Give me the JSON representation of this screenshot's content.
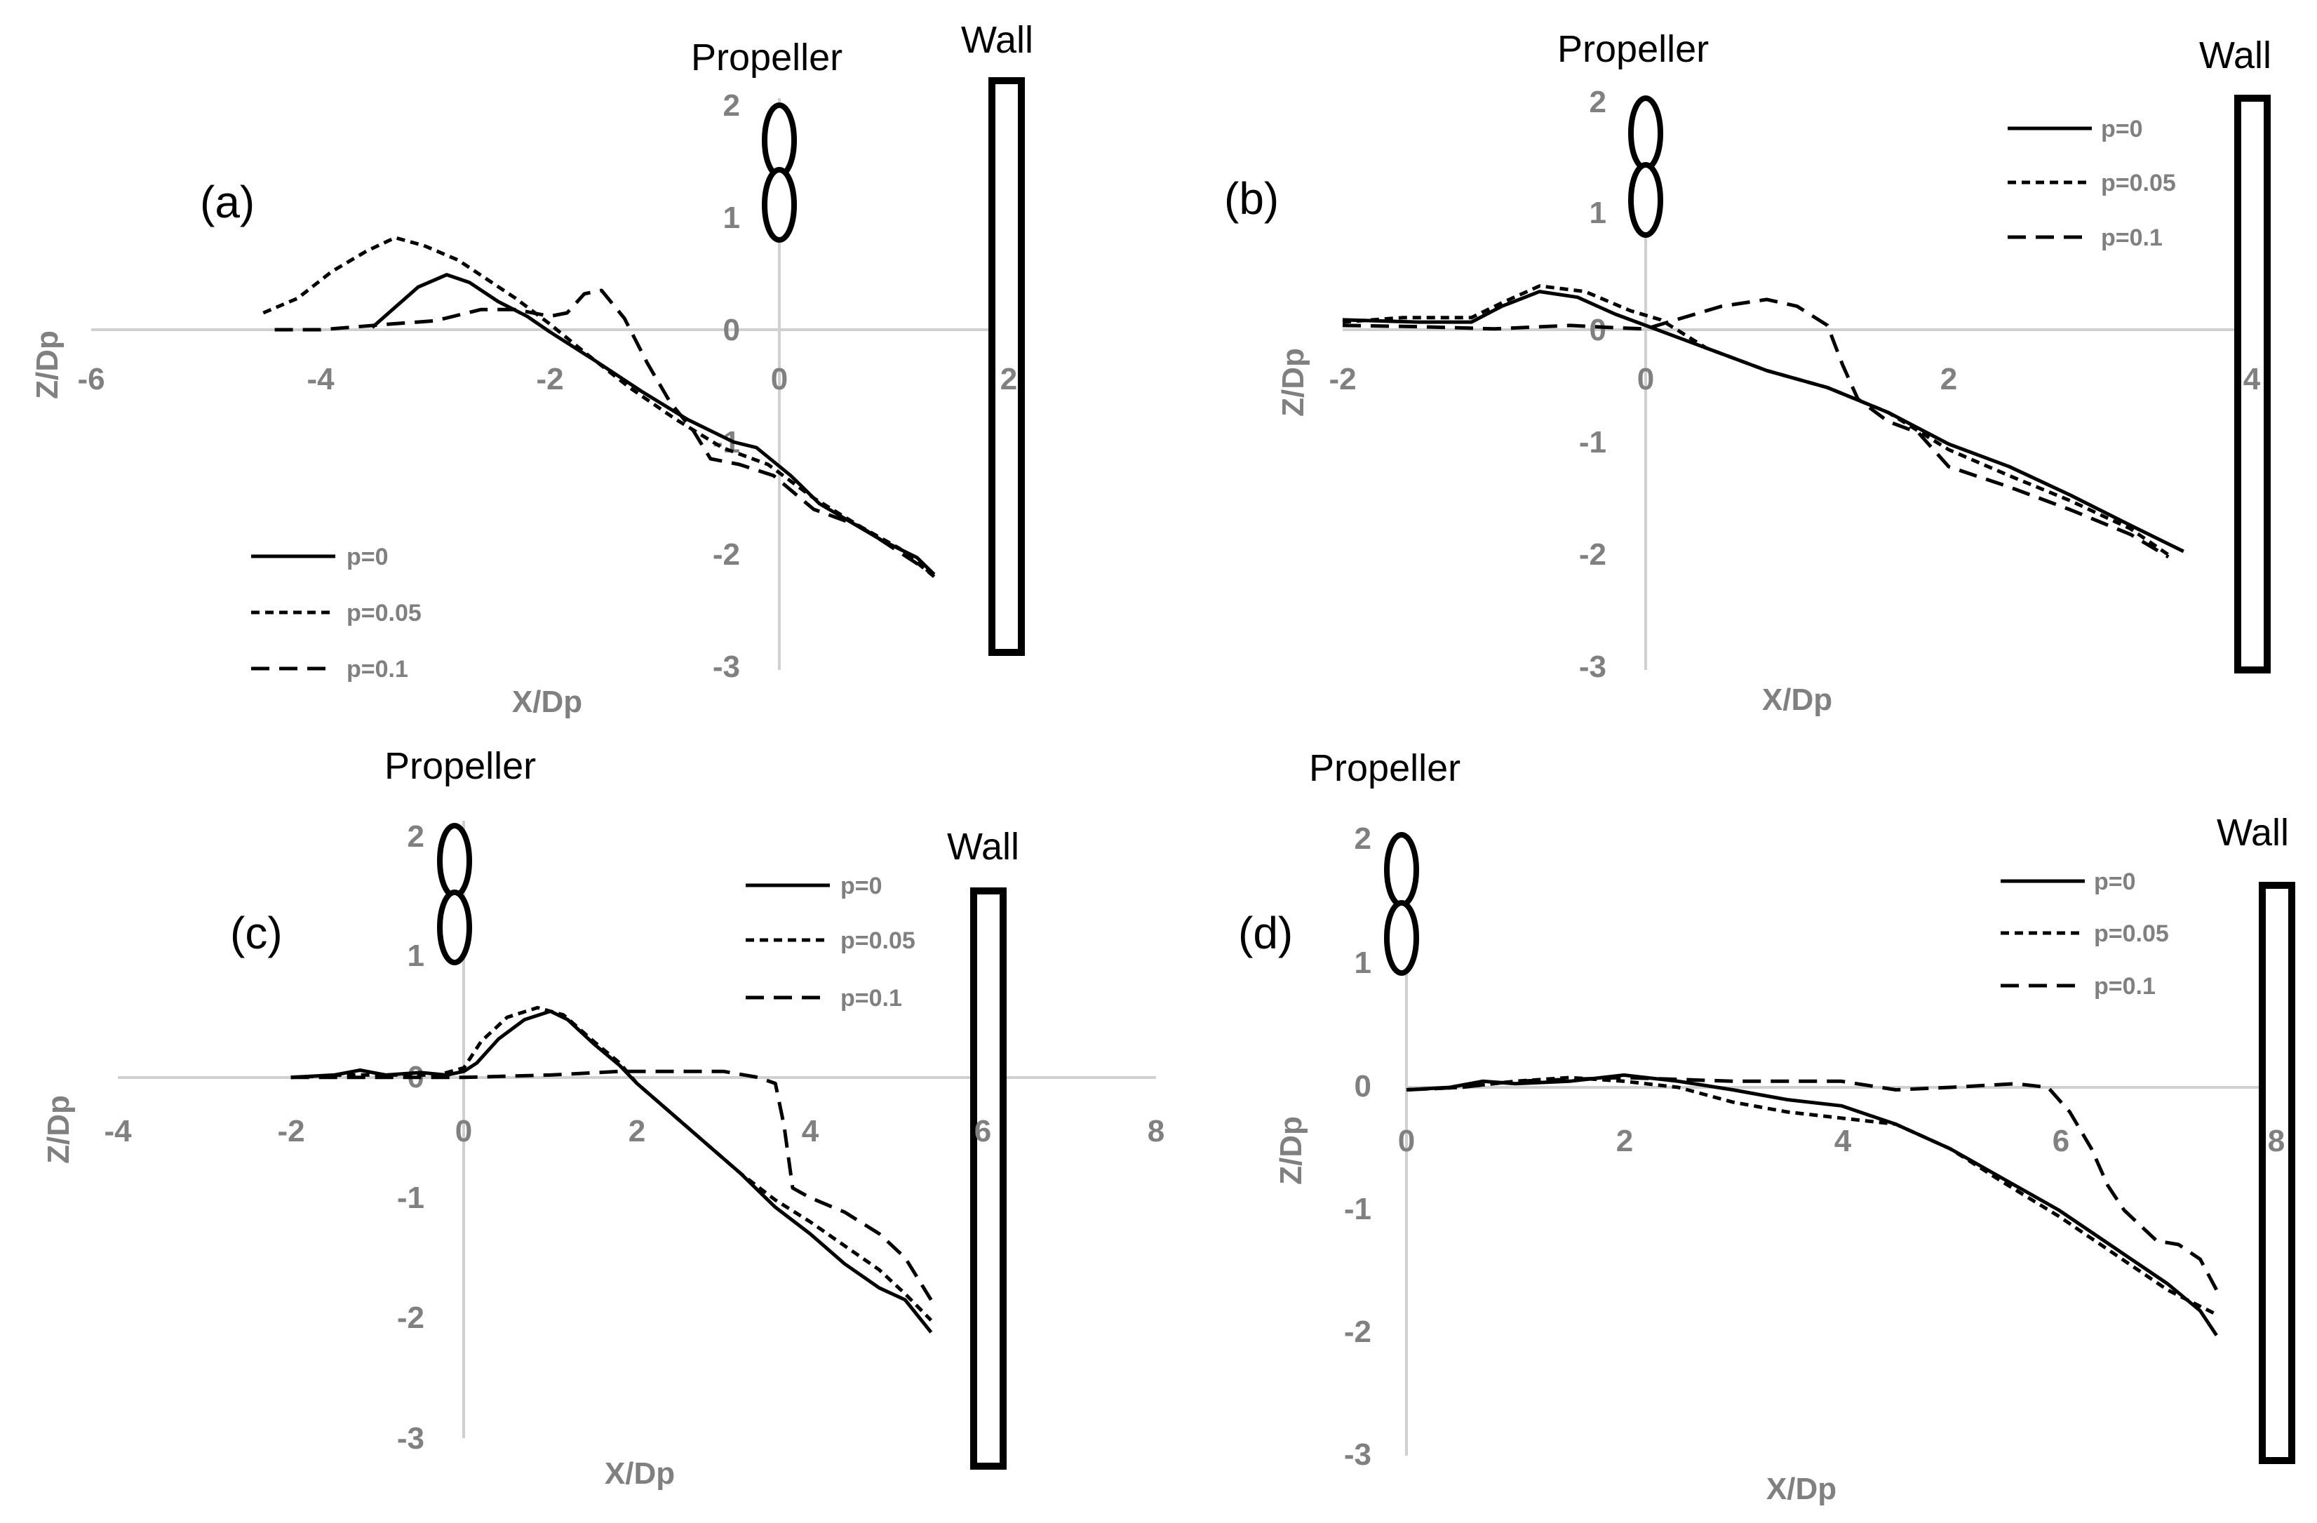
{
  "chart_data": [
    {
      "id": "a",
      "type": "line",
      "panel_label": "(a)",
      "xlabel": "X/Dp",
      "ylabel": "Z/Dp",
      "xlim": [
        -6,
        2
      ],
      "ylim": [
        -3,
        2
      ],
      "x_ticks": [
        -6,
        -4,
        -2,
        0,
        2
      ],
      "y_ticks": [
        2,
        1,
        0,
        -1,
        -2,
        -3
      ],
      "propeller_label": "Propeller",
      "wall_label": "Wall",
      "legend_position": "bottom-left",
      "series": [
        {
          "name": "p=0",
          "style": "solid",
          "points": [
            [
              -3.55,
              0.02
            ],
            [
              -3.35,
              0.2
            ],
            [
              -3.15,
              0.38
            ],
            [
              -2.9,
              0.49
            ],
            [
              -2.7,
              0.42
            ],
            [
              -2.45,
              0.25
            ],
            [
              -2.2,
              0.12
            ],
            [
              -2.0,
              -0.02
            ],
            [
              -1.6,
              -0.28
            ],
            [
              -1.2,
              -0.55
            ],
            [
              -0.8,
              -0.8
            ],
            [
              -0.4,
              -1.0
            ],
            [
              -0.2,
              -1.05
            ],
            [
              0.1,
              -1.3
            ],
            [
              0.35,
              -1.55
            ],
            [
              0.6,
              -1.7
            ],
            [
              0.9,
              -1.88
            ],
            [
              1.2,
              -2.03
            ],
            [
              1.35,
              -2.18
            ]
          ]
        },
        {
          "name": "p=0.05",
          "style": "dashed",
          "points": [
            [
              -4.5,
              0.15
            ],
            [
              -4.2,
              0.28
            ],
            [
              -3.9,
              0.52
            ],
            [
              -3.6,
              0.7
            ],
            [
              -3.35,
              0.82
            ],
            [
              -3.1,
              0.75
            ],
            [
              -2.8,
              0.62
            ],
            [
              -2.55,
              0.45
            ],
            [
              -2.3,
              0.28
            ],
            [
              -2.0,
              0.05
            ],
            [
              -1.7,
              -0.2
            ],
            [
              -1.3,
              -0.52
            ],
            [
              -0.9,
              -0.8
            ],
            [
              -0.5,
              -1.05
            ],
            [
              -0.1,
              -1.2
            ],
            [
              0.3,
              -1.5
            ],
            [
              0.7,
              -1.75
            ],
            [
              1.05,
              -1.95
            ],
            [
              1.35,
              -2.2
            ]
          ]
        },
        {
          "name": "p=0.1",
          "style": "dashed-long",
          "points": [
            [
              -4.4,
              0.0
            ],
            [
              -4.0,
              0.0
            ],
            [
              -3.4,
              0.05
            ],
            [
              -3.0,
              0.08
            ],
            [
              -2.6,
              0.18
            ],
            [
              -2.3,
              0.18
            ],
            [
              -2.0,
              0.12
            ],
            [
              -1.85,
              0.15
            ],
            [
              -1.7,
              0.32
            ],
            [
              -1.55,
              0.35
            ],
            [
              -1.35,
              0.1
            ],
            [
              -1.15,
              -0.3
            ],
            [
              -0.95,
              -0.65
            ],
            [
              -0.75,
              -0.9
            ],
            [
              -0.6,
              -1.15
            ],
            [
              -0.35,
              -1.2
            ],
            [
              -0.05,
              -1.3
            ],
            [
              0.3,
              -1.6
            ],
            [
              0.7,
              -1.75
            ],
            [
              1.0,
              -1.95
            ],
            [
              1.3,
              -2.15
            ]
          ]
        }
      ]
    },
    {
      "id": "b",
      "type": "line",
      "panel_label": "(b)",
      "xlabel": "X/Dp",
      "ylabel": "Z/Dp",
      "xlim": [
        -2,
        4
      ],
      "ylim": [
        -3,
        2
      ],
      "x_ticks": [
        -2,
        0,
        2,
        4
      ],
      "y_ticks": [
        2,
        1,
        0,
        -1,
        -2,
        -3
      ],
      "propeller_label": "Propeller",
      "wall_label": "Wall",
      "legend_position": "top-right",
      "series": [
        {
          "name": "p=0",
          "style": "solid",
          "points": [
            [
              -2.0,
              0.1
            ],
            [
              -1.5,
              0.08
            ],
            [
              -1.15,
              0.08
            ],
            [
              -0.95,
              0.22
            ],
            [
              -0.7,
              0.35
            ],
            [
              -0.45,
              0.3
            ],
            [
              -0.2,
              0.15
            ],
            [
              0.0,
              0.05
            ],
            [
              0.4,
              -0.15
            ],
            [
              0.8,
              -0.35
            ],
            [
              1.2,
              -0.5
            ],
            [
              1.6,
              -0.72
            ],
            [
              2.0,
              -1.0
            ],
            [
              2.4,
              -1.2
            ],
            [
              2.8,
              -1.45
            ],
            [
              3.2,
              -1.72
            ],
            [
              3.55,
              -1.95
            ]
          ]
        },
        {
          "name": "p=0.05",
          "style": "dashed",
          "points": [
            [
              -2.0,
              0.08
            ],
            [
              -1.6,
              0.12
            ],
            [
              -1.15,
              0.12
            ],
            [
              -0.95,
              0.25
            ],
            [
              -0.7,
              0.4
            ],
            [
              -0.4,
              0.35
            ],
            [
              -0.1,
              0.18
            ],
            [
              0.1,
              0.1
            ],
            [
              0.4,
              -0.15
            ],
            [
              0.8,
              -0.35
            ],
            [
              1.2,
              -0.5
            ],
            [
              1.6,
              -0.72
            ],
            [
              2.0,
              -1.05
            ],
            [
              2.4,
              -1.28
            ],
            [
              2.8,
              -1.5
            ],
            [
              3.2,
              -1.75
            ],
            [
              3.45,
              -1.98
            ]
          ]
        },
        {
          "name": "p=0.1",
          "style": "dashed-long",
          "points": [
            [
              -2.0,
              0.05
            ],
            [
              -1.5,
              0.04
            ],
            [
              -1.0,
              0.02
            ],
            [
              -0.5,
              0.05
            ],
            [
              -0.2,
              0.03
            ],
            [
              0.0,
              0.02
            ],
            [
              0.2,
              0.1
            ],
            [
              0.5,
              0.22
            ],
            [
              0.8,
              0.28
            ],
            [
              1.0,
              0.22
            ],
            [
              1.2,
              0.05
            ],
            [
              1.3,
              -0.3
            ],
            [
              1.4,
              -0.6
            ],
            [
              1.6,
              -0.8
            ],
            [
              1.8,
              -0.9
            ],
            [
              2.0,
              -1.2
            ],
            [
              2.4,
              -1.38
            ],
            [
              2.8,
              -1.58
            ],
            [
              3.2,
              -1.8
            ],
            [
              3.45,
              -2.0
            ]
          ]
        }
      ]
    },
    {
      "id": "c",
      "type": "line",
      "panel_label": "(c)",
      "xlabel": "X/Dp",
      "ylabel": "Z/Dp",
      "xlim": [
        -4,
        8
      ],
      "ylim": [
        -3,
        2
      ],
      "x_ticks": [
        -4,
        -2,
        0,
        2,
        4,
        6,
        8
      ],
      "y_ticks": [
        2,
        1,
        0,
        -1,
        -2,
        -3
      ],
      "propeller_label": "Propeller",
      "wall_label": "Wall",
      "legend_position": "top-right",
      "series": [
        {
          "name": "p=0",
          "style": "solid",
          "points": [
            [
              -2.0,
              0.0
            ],
            [
              -1.5,
              0.02
            ],
            [
              -1.2,
              0.06
            ],
            [
              -0.9,
              0.02
            ],
            [
              -0.5,
              0.04
            ],
            [
              -0.2,
              0.02
            ],
            [
              0.0,
              0.05
            ],
            [
              0.15,
              0.12
            ],
            [
              0.4,
              0.32
            ],
            [
              0.7,
              0.48
            ],
            [
              1.0,
              0.55
            ],
            [
              1.2,
              0.48
            ],
            [
              1.5,
              0.28
            ],
            [
              1.8,
              0.1
            ],
            [
              2.0,
              -0.05
            ],
            [
              2.4,
              -0.3
            ],
            [
              2.8,
              -0.55
            ],
            [
              3.2,
              -0.8
            ],
            [
              3.6,
              -1.08
            ],
            [
              4.0,
              -1.3
            ],
            [
              4.4,
              -1.55
            ],
            [
              4.8,
              -1.75
            ],
            [
              5.1,
              -1.85
            ],
            [
              5.4,
              -2.12
            ]
          ]
        },
        {
          "name": "p=0.05",
          "style": "dashed",
          "points": [
            [
              -2.0,
              0.0
            ],
            [
              -1.4,
              0.02
            ],
            [
              -0.8,
              0.02
            ],
            [
              -0.3,
              0.02
            ],
            [
              0.0,
              0.08
            ],
            [
              0.2,
              0.3
            ],
            [
              0.5,
              0.5
            ],
            [
              0.85,
              0.58
            ],
            [
              1.15,
              0.52
            ],
            [
              1.5,
              0.3
            ],
            [
              1.8,
              0.12
            ],
            [
              2.0,
              -0.05
            ],
            [
              2.4,
              -0.3
            ],
            [
              2.8,
              -0.55
            ],
            [
              3.2,
              -0.8
            ],
            [
              3.6,
              -1.02
            ],
            [
              4.0,
              -1.2
            ],
            [
              4.4,
              -1.4
            ],
            [
              4.8,
              -1.6
            ],
            [
              5.1,
              -1.8
            ],
            [
              5.4,
              -2.02
            ]
          ]
        },
        {
          "name": "p=0.1",
          "style": "dashed-long",
          "points": [
            [
              -2.0,
              0.0
            ],
            [
              -1.0,
              0.0
            ],
            [
              0.0,
              0.0
            ],
            [
              1.0,
              0.02
            ],
            [
              1.8,
              0.05
            ],
            [
              2.5,
              0.05
            ],
            [
              3.0,
              0.05
            ],
            [
              3.4,
              0.0
            ],
            [
              3.6,
              -0.05
            ],
            [
              3.7,
              -0.4
            ],
            [
              3.8,
              -0.92
            ],
            [
              4.0,
              -1.0
            ],
            [
              4.4,
              -1.12
            ],
            [
              4.8,
              -1.3
            ],
            [
              5.1,
              -1.5
            ],
            [
              5.4,
              -1.85
            ]
          ]
        }
      ]
    },
    {
      "id": "d",
      "type": "line",
      "panel_label": "(d)",
      "xlabel": "X/Dp",
      "ylabel": "Z/Dp",
      "xlim": [
        0,
        8
      ],
      "ylim": [
        -3,
        2
      ],
      "x_ticks": [
        0,
        2,
        4,
        6,
        8
      ],
      "y_ticks": [
        2,
        1,
        0,
        -1,
        -2,
        -3
      ],
      "propeller_label": "Propeller",
      "wall_label": "Wall",
      "legend_position": "top-right",
      "series": [
        {
          "name": "p=0",
          "style": "solid",
          "points": [
            [
              0.0,
              -0.02
            ],
            [
              0.4,
              0.0
            ],
            [
              0.7,
              0.05
            ],
            [
              1.0,
              0.03
            ],
            [
              1.5,
              0.05
            ],
            [
              2.0,
              0.1
            ],
            [
              2.5,
              0.05
            ],
            [
              3.0,
              -0.02
            ],
            [
              3.5,
              -0.1
            ],
            [
              4.0,
              -0.15
            ],
            [
              4.5,
              -0.3
            ],
            [
              5.0,
              -0.5
            ],
            [
              5.5,
              -0.75
            ],
            [
              6.0,
              -1.0
            ],
            [
              6.5,
              -1.3
            ],
            [
              7.0,
              -1.6
            ],
            [
              7.3,
              -1.82
            ],
            [
              7.45,
              -2.02
            ]
          ]
        },
        {
          "name": "p=0.05",
          "style": "dashed",
          "points": [
            [
              0.0,
              -0.02
            ],
            [
              0.5,
              0.0
            ],
            [
              1.0,
              0.05
            ],
            [
              1.5,
              0.08
            ],
            [
              2.0,
              0.05
            ],
            [
              2.5,
              0.0
            ],
            [
              3.0,
              -0.12
            ],
            [
              3.5,
              -0.2
            ],
            [
              4.0,
              -0.25
            ],
            [
              4.5,
              -0.3
            ],
            [
              5.0,
              -0.5
            ],
            [
              5.5,
              -0.78
            ],
            [
              6.0,
              -1.05
            ],
            [
              6.5,
              -1.35
            ],
            [
              7.0,
              -1.65
            ],
            [
              7.45,
              -1.85
            ]
          ]
        },
        {
          "name": "p=0.1",
          "style": "dashed-long",
          "points": [
            [
              0.0,
              -0.02
            ],
            [
              0.5,
              0.0
            ],
            [
              1.0,
              0.05
            ],
            [
              2.0,
              0.08
            ],
            [
              3.0,
              0.05
            ],
            [
              4.0,
              0.05
            ],
            [
              4.5,
              -0.02
            ],
            [
              5.0,
              0.0
            ],
            [
              5.6,
              0.03
            ],
            [
              5.9,
              0.0
            ],
            [
              6.1,
              -0.2
            ],
            [
              6.3,
              -0.5
            ],
            [
              6.45,
              -0.8
            ],
            [
              6.6,
              -1.0
            ],
            [
              6.9,
              -1.25
            ],
            [
              7.1,
              -1.28
            ],
            [
              7.3,
              -1.4
            ],
            [
              7.45,
              -1.65
            ]
          ]
        }
      ]
    }
  ]
}
